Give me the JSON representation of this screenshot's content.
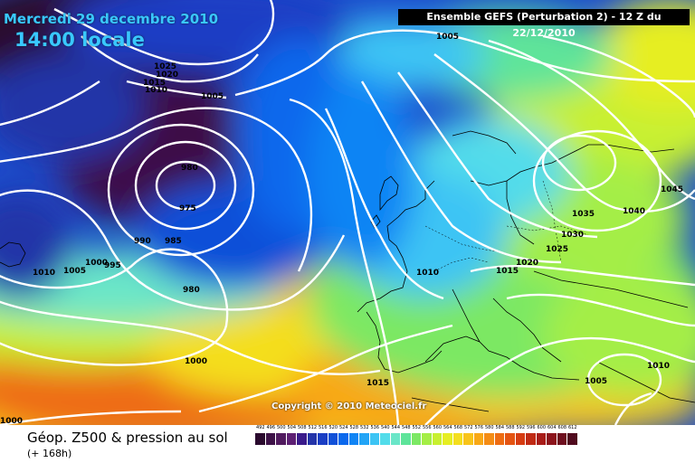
{
  "title": {
    "date_line": "Mercredi 29 decembre 2010",
    "time_line": "14:00 locale"
  },
  "header": {
    "run_info": "Ensemble GEFS (Perturbation 2)  -  12 Z du 22/12/2010"
  },
  "copyright": "Copyright © 2010 Meteociel.fr",
  "footer": {
    "product": "Géop. Z500 & pression au sol",
    "lead_time": "(+ 168h)"
  },
  "scale": {
    "labels": [
      "492",
      "496",
      "500",
      "504",
      "508",
      "512",
      "516",
      "520",
      "524",
      "528",
      "532",
      "536",
      "540",
      "544",
      "548",
      "552",
      "556",
      "560",
      "564",
      "568",
      "572",
      "576",
      "580",
      "584",
      "588",
      "592",
      "596",
      "600",
      "604",
      "608",
      "612"
    ],
    "colors": [
      "#2a0a2e",
      "#3d1147",
      "#501a5e",
      "#5d1f73",
      "#3a1a8a",
      "#2434a8",
      "#1a3ec4",
      "#1050d8",
      "#0a68ec",
      "#1084f4",
      "#22a4f6",
      "#3cc4f4",
      "#52dcea",
      "#6ae6c8",
      "#5ee49a",
      "#7ce864",
      "#a4ee46",
      "#c8f030",
      "#e6ee22",
      "#f4de1e",
      "#f8c41a",
      "#f8a816",
      "#f48c14",
      "#ee6c12",
      "#e45412",
      "#d63c12",
      "#c02a14",
      "#a81c18",
      "#8c141c",
      "#6e0e1e",
      "#500a1e"
    ]
  },
  "isobar_labels": [
    {
      "text": "1025"
    },
    {
      "text": "1020"
    },
    {
      "text": "1015"
    },
    {
      "text": "1010"
    },
    {
      "text": "1005"
    },
    {
      "text": "980"
    },
    {
      "text": "975"
    },
    {
      "text": "990"
    },
    {
      "text": "985"
    },
    {
      "text": "1010"
    },
    {
      "text": "1005"
    },
    {
      "text": "1000"
    },
    {
      "text": "995"
    },
    {
      "text": "980"
    },
    {
      "text": "1000"
    },
    {
      "text": "1000"
    },
    {
      "text": "1005"
    },
    {
      "text": "1010"
    },
    {
      "text": "1015"
    },
    {
      "text": "1020"
    },
    {
      "text": "1025"
    },
    {
      "text": "1030"
    },
    {
      "text": "1035"
    },
    {
      "text": "1040"
    },
    {
      "text": "1045"
    },
    {
      "text": "1010"
    },
    {
      "text": "1015"
    },
    {
      "text": "1005"
    }
  ]
}
